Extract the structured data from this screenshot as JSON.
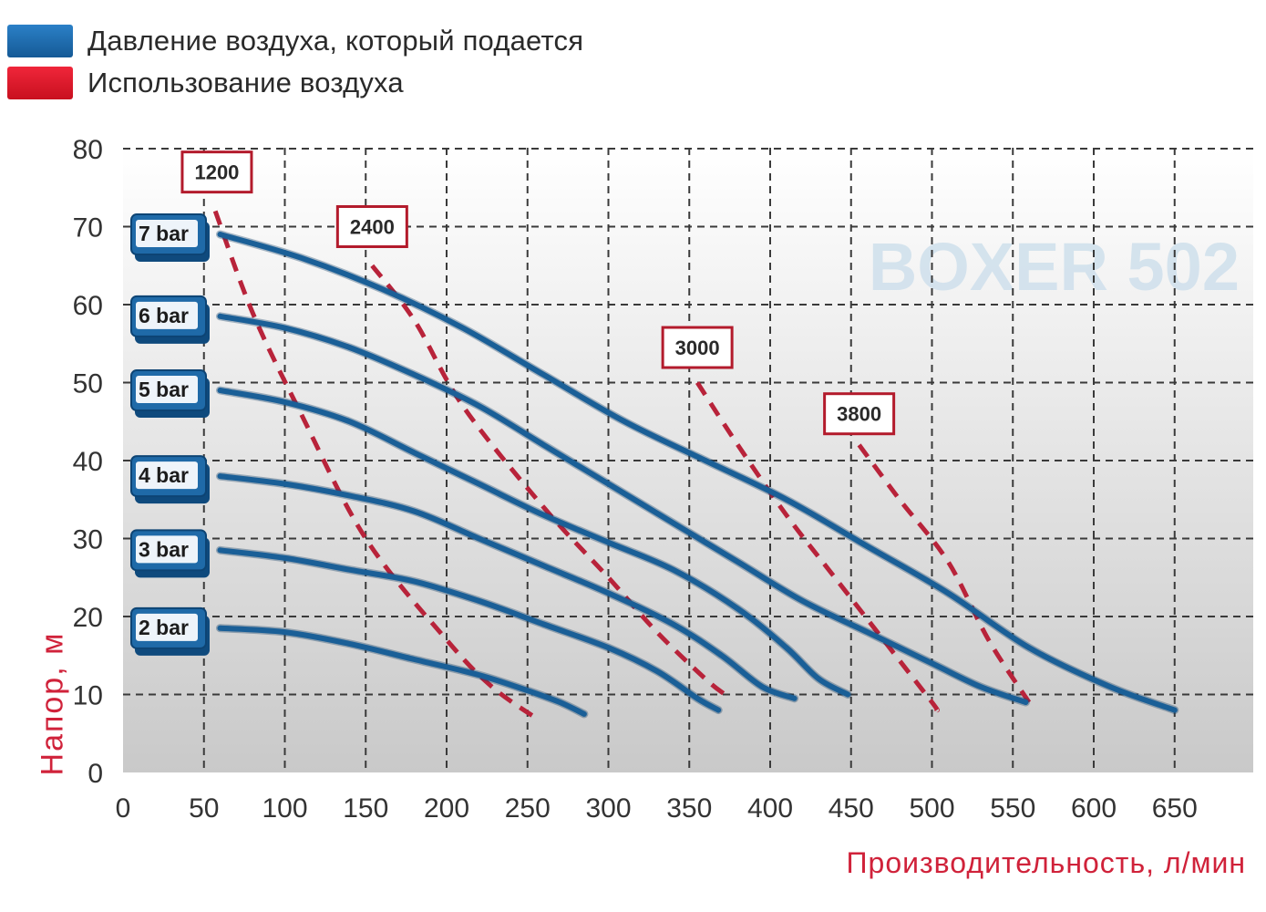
{
  "legend": {
    "items": [
      {
        "label": "Давление воздуха, который подается",
        "color": "#1e6fb3"
      },
      {
        "label": "Использование воздуха",
        "color": "#e3132a"
      }
    ]
  },
  "chart_data": {
    "type": "line",
    "watermark": "BOXER 502",
    "xlabel": "Производительность, л/мин",
    "ylabel": "Напор, м",
    "xlim": [
      0,
      700
    ],
    "ylim": [
      0,
      80
    ],
    "x_ticks": [
      0,
      50,
      100,
      150,
      200,
      250,
      300,
      350,
      400,
      450,
      500,
      550,
      600,
      650
    ],
    "y_ticks": [
      0,
      10,
      20,
      30,
      40,
      50,
      60,
      70,
      80
    ],
    "grid": true,
    "colors": {
      "pressure": "#1a5f97",
      "consumption": "#b8233a",
      "label_box": "#1f6aa8",
      "label_border": "#b31b2c"
    },
    "series": [
      {
        "name": "7 bar",
        "kind": "pressure",
        "points": [
          [
            60,
            69
          ],
          [
            110,
            66
          ],
          [
            160,
            62
          ],
          [
            210,
            57
          ],
          [
            260,
            51
          ],
          [
            310,
            45
          ],
          [
            360,
            40
          ],
          [
            410,
            35
          ],
          [
            460,
            29
          ],
          [
            510,
            23
          ],
          [
            560,
            16
          ],
          [
            610,
            11
          ],
          [
            650,
            8
          ]
        ]
      },
      {
        "name": "6 bar",
        "kind": "pressure",
        "points": [
          [
            60,
            58.5
          ],
          [
            100,
            57
          ],
          [
            140,
            54.5
          ],
          [
            180,
            51
          ],
          [
            220,
            47
          ],
          [
            260,
            42
          ],
          [
            300,
            37
          ],
          [
            340,
            32
          ],
          [
            380,
            27
          ],
          [
            420,
            22
          ],
          [
            460,
            18
          ],
          [
            500,
            14
          ],
          [
            530,
            11
          ],
          [
            558,
            9
          ]
        ]
      },
      {
        "name": "5 bar",
        "kind": "pressure",
        "points": [
          [
            60,
            49
          ],
          [
            100,
            47.5
          ],
          [
            140,
            45
          ],
          [
            180,
            41
          ],
          [
            220,
            37
          ],
          [
            260,
            33
          ],
          [
            300,
            29.5
          ],
          [
            340,
            26
          ],
          [
            380,
            21
          ],
          [
            410,
            16
          ],
          [
            430,
            12
          ],
          [
            448,
            10
          ]
        ]
      },
      {
        "name": "4 bar",
        "kind": "pressure",
        "points": [
          [
            60,
            38
          ],
          [
            100,
            37
          ],
          [
            140,
            35.5
          ],
          [
            180,
            33.5
          ],
          [
            220,
            30
          ],
          [
            260,
            26.5
          ],
          [
            300,
            23
          ],
          [
            340,
            19
          ],
          [
            370,
            15
          ],
          [
            395,
            11
          ],
          [
            415,
            9.5
          ]
        ]
      },
      {
        "name": "3 bar",
        "kind": "pressure",
        "points": [
          [
            60,
            28.5
          ],
          [
            100,
            27.5
          ],
          [
            140,
            26
          ],
          [
            180,
            24.5
          ],
          [
            220,
            22
          ],
          [
            260,
            19
          ],
          [
            300,
            16
          ],
          [
            330,
            13
          ],
          [
            355,
            9.5
          ],
          [
            368,
            8
          ]
        ]
      },
      {
        "name": "2 bar",
        "kind": "pressure",
        "points": [
          [
            60,
            18.5
          ],
          [
            100,
            18
          ],
          [
            140,
            16.5
          ],
          [
            180,
            14.5
          ],
          [
            220,
            12.5
          ],
          [
            250,
            10.5
          ],
          [
            270,
            9
          ],
          [
            285,
            7.5
          ]
        ]
      },
      {
        "name": "1200",
        "kind": "consumption",
        "label_at": [
          58,
          77
        ],
        "points": [
          [
            57,
            72
          ],
          [
            80,
            59
          ],
          [
            110,
            46
          ],
          [
            150,
            30
          ],
          [
            200,
            17
          ],
          [
            228,
            11
          ],
          [
            255,
            7
          ]
        ]
      },
      {
        "name": "2400",
        "kind": "consumption",
        "label_at": [
          154,
          70
        ],
        "points": [
          [
            154,
            65
          ],
          [
            180,
            58
          ],
          [
            210,
            47
          ],
          [
            260,
            34
          ],
          [
            300,
            25
          ],
          [
            330,
            18
          ],
          [
            360,
            12
          ],
          [
            372,
            10
          ]
        ]
      },
      {
        "name": "3000",
        "kind": "consumption",
        "label_at": [
          355,
          54.5
        ],
        "points": [
          [
            355,
            50
          ],
          [
            380,
            42
          ],
          [
            410,
            33
          ],
          [
            440,
            25
          ],
          [
            470,
            17
          ],
          [
            500,
            9
          ],
          [
            503,
            8
          ]
        ]
      },
      {
        "name": "3800",
        "kind": "consumption",
        "label_at": [
          455,
          46
        ],
        "points": [
          [
            455,
            42
          ],
          [
            480,
            35
          ],
          [
            510,
            27
          ],
          [
            535,
            17
          ],
          [
            560,
            9
          ]
        ]
      }
    ]
  }
}
